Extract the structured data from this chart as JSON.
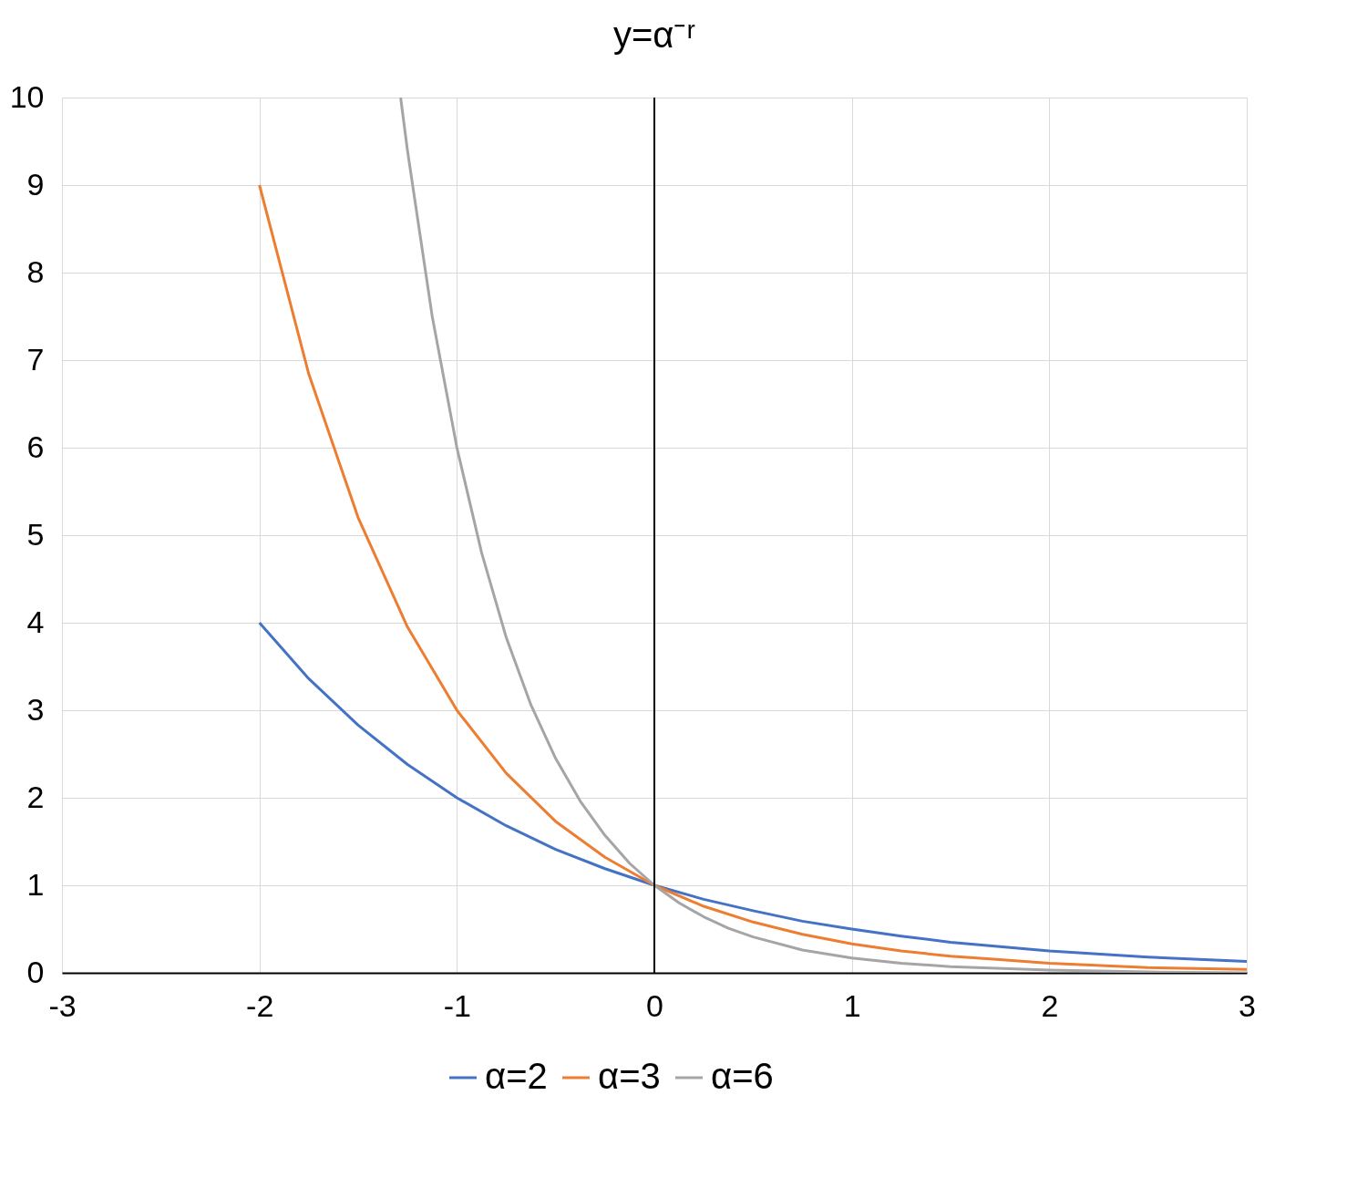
{
  "chart_data": {
    "type": "line",
    "title": "y=α⁻ʳ",
    "xlim": [
      -3,
      3
    ],
    "xticks": [
      -3,
      -2,
      -1,
      0,
      1,
      2,
      3
    ],
    "ylim": [
      0,
      10
    ],
    "yticks": [
      0,
      1,
      2,
      3,
      4,
      5,
      6,
      7,
      8,
      9,
      10
    ],
    "grid": true,
    "legend": "bottom",
    "marker": "none",
    "line_style": "solid",
    "ref_lines": [
      {
        "axis": "x",
        "value": 0,
        "color": "#000000"
      }
    ],
    "series": [
      {
        "name": "α=2",
        "color": "#4472c4",
        "x": [
          -2,
          -1.75,
          -1.5,
          -1.25,
          -1,
          -0.75,
          -0.5,
          -0.25,
          0,
          0.25,
          0.5,
          0.75,
          1,
          1.25,
          1.5,
          1.75,
          2,
          2.5,
          3
        ],
        "values": [
          4,
          3.36,
          2.83,
          2.38,
          2,
          1.68,
          1.41,
          1.19,
          1,
          0.84,
          0.71,
          0.59,
          0.5,
          0.42,
          0.35,
          0.3,
          0.25,
          0.18,
          0.13
        ]
      },
      {
        "name": "α=3",
        "color": "#ed7d31",
        "x": [
          -2,
          -1.75,
          -1.5,
          -1.25,
          -1,
          -0.75,
          -0.5,
          -0.25,
          0,
          0.25,
          0.5,
          0.75,
          1,
          1.25,
          1.5,
          1.75,
          2,
          2.5,
          3
        ],
        "values": [
          9,
          6.84,
          5.2,
          3.95,
          3,
          2.28,
          1.73,
          1.32,
          1,
          0.76,
          0.58,
          0.44,
          0.33,
          0.25,
          0.19,
          0.15,
          0.11,
          0.06,
          0.04
        ]
      },
      {
        "name": "α=6",
        "color": "#a5a5a5",
        "x": [
          -1.285,
          -1.25,
          -1.125,
          -1,
          -0.875,
          -0.75,
          -0.625,
          -0.5,
          -0.375,
          -0.25,
          -0.125,
          0,
          0.125,
          0.25,
          0.375,
          0.5,
          0.75,
          1,
          1.25,
          1.5,
          2,
          2.5,
          3
        ],
        "values": [
          10,
          9.39,
          7.5,
          6,
          4.8,
          3.83,
          3.06,
          2.45,
          1.96,
          1.57,
          1.25,
          1,
          0.8,
          0.64,
          0.51,
          0.41,
          0.26,
          0.17,
          0.11,
          0.07,
          0.03,
          0.01,
          0
        ]
      }
    ]
  }
}
